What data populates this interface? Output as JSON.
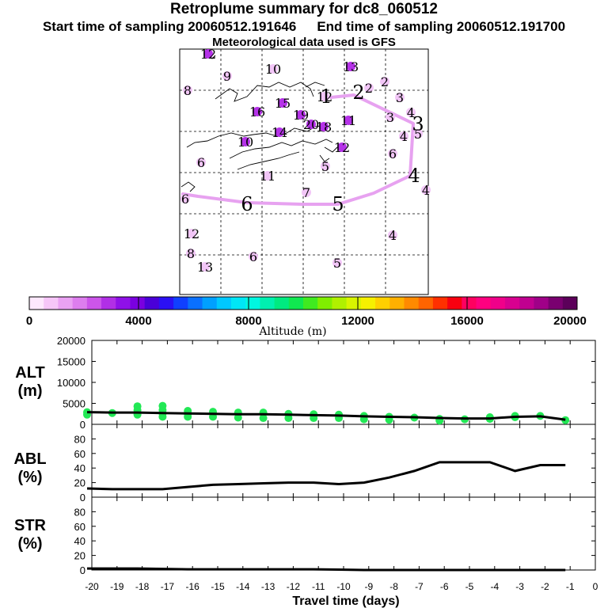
{
  "header": {
    "title": "Retroplume summary for dc8_060512",
    "start_label": "Start time of sampling 20060512.191646",
    "end_label": "End time of sampling 20060512.191700",
    "met_label": "Meteorological data used is GFS"
  },
  "colors": {
    "plume_path": "#e7a2f0",
    "marker_pink": "#e38ff0",
    "marker_purple": "#b532e8",
    "marker_light": "#f2c6f7",
    "alt_points": "#22e855"
  },
  "map": {
    "labels": [
      {
        "text": "12",
        "x": 263,
        "y": 69,
        "c": 1
      },
      {
        "text": "9",
        "x": 287,
        "y": 97,
        "c": 0
      },
      {
        "text": "10",
        "x": 345,
        "y": 88,
        "c": 0
      },
      {
        "text": "13",
        "x": 443,
        "y": 85,
        "c": 1
      },
      {
        "text": "8",
        "x": 237,
        "y": 115,
        "c": 0
      },
      {
        "text": "2",
        "x": 486,
        "y": 104,
        "c": 0
      },
      {
        "text": "12",
        "x": 410,
        "y": 123,
        "c": 0
      },
      {
        "text": "1",
        "x": 412,
        "y": 122,
        "c": 0,
        "big": 1
      },
      {
        "text": "2",
        "x": 466,
        "y": 112,
        "c": 0
      },
      {
        "text": "2",
        "x": 453,
        "y": 117,
        "c": 0,
        "big": 1
      },
      {
        "text": "3",
        "x": 505,
        "y": 124,
        "c": 0
      },
      {
        "text": "15",
        "x": 357,
        "y": 131,
        "c": 1
      },
      {
        "text": "16",
        "x": 325,
        "y": 142,
        "c": 1
      },
      {
        "text": "19",
        "x": 380,
        "y": 146,
        "c": 1
      },
      {
        "text": "3",
        "x": 493,
        "y": 149,
        "c": 0
      },
      {
        "text": "4",
        "x": 519,
        "y": 143,
        "c": 0
      },
      {
        "text": "3",
        "x": 528,
        "y": 157,
        "c": 0,
        "big": 1
      },
      {
        "text": "20",
        "x": 393,
        "y": 158,
        "c": 1
      },
      {
        "text": "18",
        "x": 409,
        "y": 161,
        "c": 1
      },
      {
        "text": "14",
        "x": 353,
        "y": 168,
        "c": 1
      },
      {
        "text": "11",
        "x": 440,
        "y": 153,
        "c": 1
      },
      {
        "text": "4",
        "x": 510,
        "y": 173,
        "c": 0
      },
      {
        "text": "5",
        "x": 528,
        "y": 170,
        "c": 0
      },
      {
        "text": "10",
        "x": 310,
        "y": 180,
        "c": 1
      },
      {
        "text": "12",
        "x": 432,
        "y": 187,
        "c": 1
      },
      {
        "text": "6",
        "x": 254,
        "y": 206,
        "c": 0
      },
      {
        "text": "6",
        "x": 496,
        "y": 195,
        "c": 0
      },
      {
        "text": "5",
        "x": 411,
        "y": 211,
        "c": 0
      },
      {
        "text": "11",
        "x": 338,
        "y": 223,
        "c": 0
      },
      {
        "text": "4",
        "x": 523,
        "y": 222,
        "c": 0,
        "big": 1
      },
      {
        "text": "7",
        "x": 387,
        "y": 244,
        "c": 0
      },
      {
        "text": "4",
        "x": 538,
        "y": 241,
        "c": 0
      },
      {
        "text": "6",
        "x": 234,
        "y": 252,
        "c": 0
      },
      {
        "text": "6",
        "x": 312,
        "y": 258,
        "c": 0,
        "big": 1
      },
      {
        "text": "5",
        "x": 427,
        "y": 258,
        "c": 0,
        "big": 1
      },
      {
        "text": "12",
        "x": 242,
        "y": 296,
        "c": 0
      },
      {
        "text": "4",
        "x": 496,
        "y": 298,
        "c": 0
      },
      {
        "text": "8",
        "x": 241,
        "y": 321,
        "c": 0
      },
      {
        "text": "6",
        "x": 320,
        "y": 325,
        "c": 0
      },
      {
        "text": "13",
        "x": 259,
        "y": 338,
        "c": 0
      },
      {
        "text": "5",
        "x": 426,
        "y": 333,
        "c": 0
      }
    ]
  },
  "colorbar": {
    "title": "Altitude (m)",
    "ticks": [
      "0",
      "4000",
      "8000",
      "12000",
      "16000",
      "20000"
    ],
    "colors": [
      "#fde8fd",
      "#f6c6f8",
      "#eaa2f3",
      "#dd7eee",
      "#cc55ea",
      "#b12fe6",
      "#8f11e8",
      "#7a00e0",
      "#4a00d8",
      "#2b10f5",
      "#1040ff",
      "#0a70ff",
      "#00a0ff",
      "#00c8ff",
      "#00e6f6",
      "#00f6e0",
      "#00f0b0",
      "#00ea80",
      "#10e850",
      "#40ea20",
      "#80ee00",
      "#b0f000",
      "#d8f400",
      "#f6f000",
      "#ffd000",
      "#ffb000",
      "#ff8a00",
      "#ff6400",
      "#ff3000",
      "#f80010",
      "#ff0060",
      "#ff0080",
      "#f0008a",
      "#d80090",
      "#c00090",
      "#a00088",
      "#7a0070",
      "#5c005a"
    ]
  },
  "chart_data": [
    {
      "type": "scatter",
      "name": "ALT",
      "ylabel_line1": "ALT",
      "ylabel_line2": "(m)",
      "ylim": [
        0,
        20000
      ],
      "yticks": [
        "0",
        "5000",
        "10000",
        "15000",
        "20000"
      ],
      "x": [
        -20,
        -19,
        -18,
        -17,
        -16,
        -15,
        -14,
        -13,
        -12,
        -11,
        -10,
        -9,
        -8,
        -7,
        -6,
        -5,
        -4,
        -3,
        -2,
        -1
      ],
      "median": [
        2900,
        2800,
        2800,
        2700,
        2600,
        2500,
        2400,
        2400,
        2300,
        2200,
        2100,
        1900,
        1800,
        1700,
        1500,
        1400,
        1400,
        1800,
        1900,
        1100
      ],
      "points": [
        [
          -20,
          2900
        ],
        [
          -20,
          2300
        ],
        [
          -19,
          2700
        ],
        [
          -18,
          3400
        ],
        [
          -18,
          2300
        ],
        [
          -18,
          4300
        ],
        [
          -17,
          2600
        ],
        [
          -17,
          3400
        ],
        [
          -17,
          1800
        ],
        [
          -17,
          4400
        ],
        [
          -16,
          3200
        ],
        [
          -16,
          1800
        ],
        [
          -16,
          2500
        ],
        [
          -15,
          3000
        ],
        [
          -15,
          1800
        ],
        [
          -14,
          2800
        ],
        [
          -14,
          1600
        ],
        [
          -13,
          2800
        ],
        [
          -13,
          1500
        ],
        [
          -12,
          2500
        ],
        [
          -12,
          1500
        ],
        [
          -11,
          2400
        ],
        [
          -11,
          1500
        ],
        [
          -10,
          2300
        ],
        [
          -10,
          1500
        ],
        [
          -9,
          2000
        ],
        [
          -9,
          1200
        ],
        [
          -8,
          1800
        ],
        [
          -8,
          1100
        ],
        [
          -7,
          1600
        ],
        [
          -6,
          1300
        ],
        [
          -6,
          900
        ],
        [
          -5,
          1200
        ],
        [
          -4,
          1300
        ],
        [
          -4,
          1700
        ],
        [
          -3,
          1700
        ],
        [
          -3,
          2000
        ],
        [
          -2,
          2000
        ],
        [
          -1,
          1000
        ]
      ],
      "xlabel": "Travel time (days)",
      "xlim": [
        -20,
        0
      ]
    },
    {
      "type": "line",
      "name": "ABL",
      "ylabel_line1": "ABL",
      "ylabel_line2": "(%)",
      "ylim": [
        0,
        100
      ],
      "yticks": [
        "0",
        "20",
        "40",
        "60",
        "80"
      ],
      "x": [
        -20,
        -19,
        -18,
        -17,
        -16,
        -15,
        -14,
        -13,
        -12,
        -11,
        -10,
        -9,
        -8,
        -7,
        -6,
        -5,
        -4,
        -3,
        -2,
        -1
      ],
      "values": [
        12,
        11,
        11,
        11,
        14,
        17,
        18,
        19,
        20,
        20,
        18,
        20,
        27,
        36,
        48,
        48,
        48,
        36,
        44,
        44
      ],
      "xlim": [
        -20,
        0
      ]
    },
    {
      "type": "line",
      "name": "STR",
      "ylabel_line1": "STR",
      "ylabel_line2": "(%)",
      "ylim": [
        0,
        100
      ],
      "yticks": [
        "0",
        "20",
        "40",
        "60",
        "80"
      ],
      "x": [
        -20,
        -19,
        -18,
        -17,
        -16,
        -15,
        -14,
        -13,
        -12,
        -11,
        -10,
        -9,
        -8,
        -7,
        -6,
        -5,
        -4,
        -3,
        -2,
        -1
      ],
      "values": [
        2,
        2,
        2,
        1.5,
        1,
        1,
        1,
        1,
        1,
        1,
        0.5,
        0,
        0,
        0,
        0,
        0,
        0,
        0,
        0,
        0
      ],
      "xlim": [
        -20,
        0
      ],
      "xticks": [
        "-20",
        "-19",
        "-18",
        "-17",
        "-16",
        "-15",
        "-14",
        "-13",
        "-12",
        "-11",
        "-10",
        "-9",
        "-8",
        "-7",
        "-6",
        "-5",
        "-4",
        "-3",
        "-2",
        "-1",
        "0"
      ],
      "xlabel": "Travel time (days)"
    }
  ]
}
